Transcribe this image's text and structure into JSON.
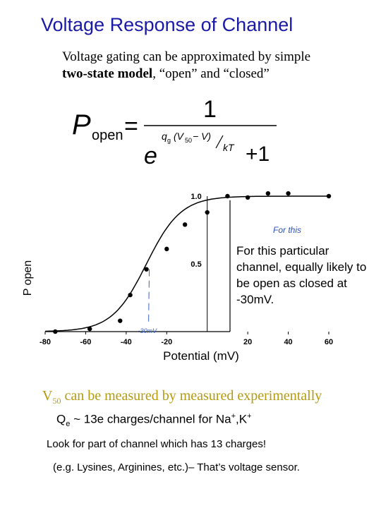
{
  "slide": {
    "title": "Voltage Response of Channel",
    "intro_line1": "Voltage gating can be approximated by simple",
    "intro_bold": "two-state model",
    "intro_rest": ", “open” and “closed”"
  },
  "formula": {
    "lhs_main": "P",
    "lhs_sub": "open",
    "equals": "=",
    "numerator": "1",
    "base": "e",
    "exp_q": "q",
    "exp_q_sub": "g",
    "exp_v_open": "(V",
    "exp_v_sub": "50",
    "exp_v_rest": " − V)",
    "exp_kt": "kT",
    "plus_one": "+1"
  },
  "note": {
    "text": "For this particular channel, equally likely to be open as closed at -30mV.",
    "handwritten": "For this",
    "handwritten_small": "-30mV"
  },
  "bottom": {
    "v50_main": "V",
    "v50_sub": "50",
    "v50_rest": " can be measured by measured experimentally",
    "qe_q": "Q",
    "qe_sub": "e",
    "qe_mid": " ~ 13e charges/channel for Na",
    "qe_plus1": "+",
    "qe_sep": ",K",
    "qe_plus2": "+",
    "look": "Look for part of channel which has 13 charges!",
    "eg": "(e.g. Lysines, Arginines, etc.)– That’s voltage sensor."
  },
  "chart_data": {
    "type": "scatter",
    "title": "",
    "xlabel": "Potential (mV)",
    "ylabel": "P open",
    "xlim": [
      -80,
      60
    ],
    "ylim": [
      0,
      1.0
    ],
    "x_ticks": [
      "-80",
      "-60",
      "-40",
      "-20",
      "20",
      "40",
      "60"
    ],
    "y_ticks": [
      "0.5",
      "1.0"
    ],
    "series": [
      {
        "x": [
          -75,
          -58,
          -43,
          -38,
          -30,
          -20,
          -11,
          0,
          10,
          20,
          30,
          40,
          60
        ],
        "y": [
          0.0,
          0.02,
          0.08,
          0.27,
          0.46,
          0.61,
          0.79,
          0.88,
          1.0,
          0.99,
          1.02,
          1.02,
          1.0
        ]
      }
    ],
    "fit_curve": {
      "v50": -30,
      "slope_mV": 8.5
    },
    "marker": {
      "x": 0,
      "label": ""
    }
  }
}
